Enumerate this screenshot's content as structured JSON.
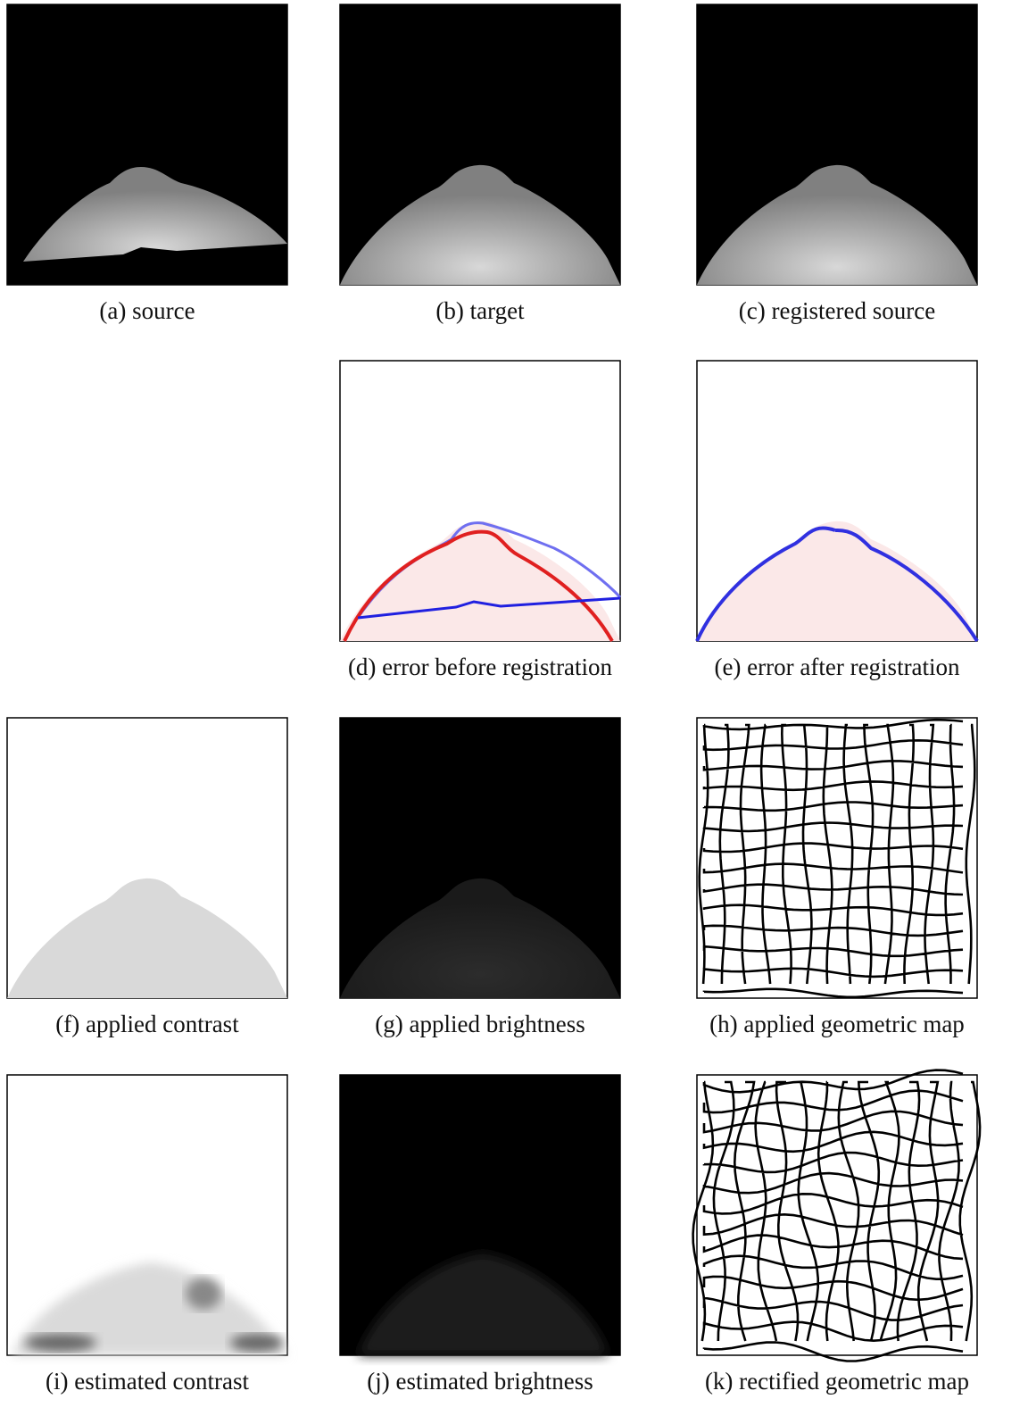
{
  "figure": {
    "panels": [
      {
        "caption": "(a) source"
      },
      {
        "caption": "(b) target"
      },
      {
        "caption": "(c) registered source"
      },
      {
        "caption": "(d) error before registration"
      },
      {
        "caption": "(e) error after registration"
      },
      {
        "caption": "(f) applied contrast"
      },
      {
        "caption": "(g) applied brightness"
      },
      {
        "caption": "(h) applied geometric map"
      },
      {
        "caption": "(i) estimated contrast"
      },
      {
        "caption": "(j) estimated brightness"
      },
      {
        "caption": "(k) rectified geometric map"
      }
    ]
  }
}
